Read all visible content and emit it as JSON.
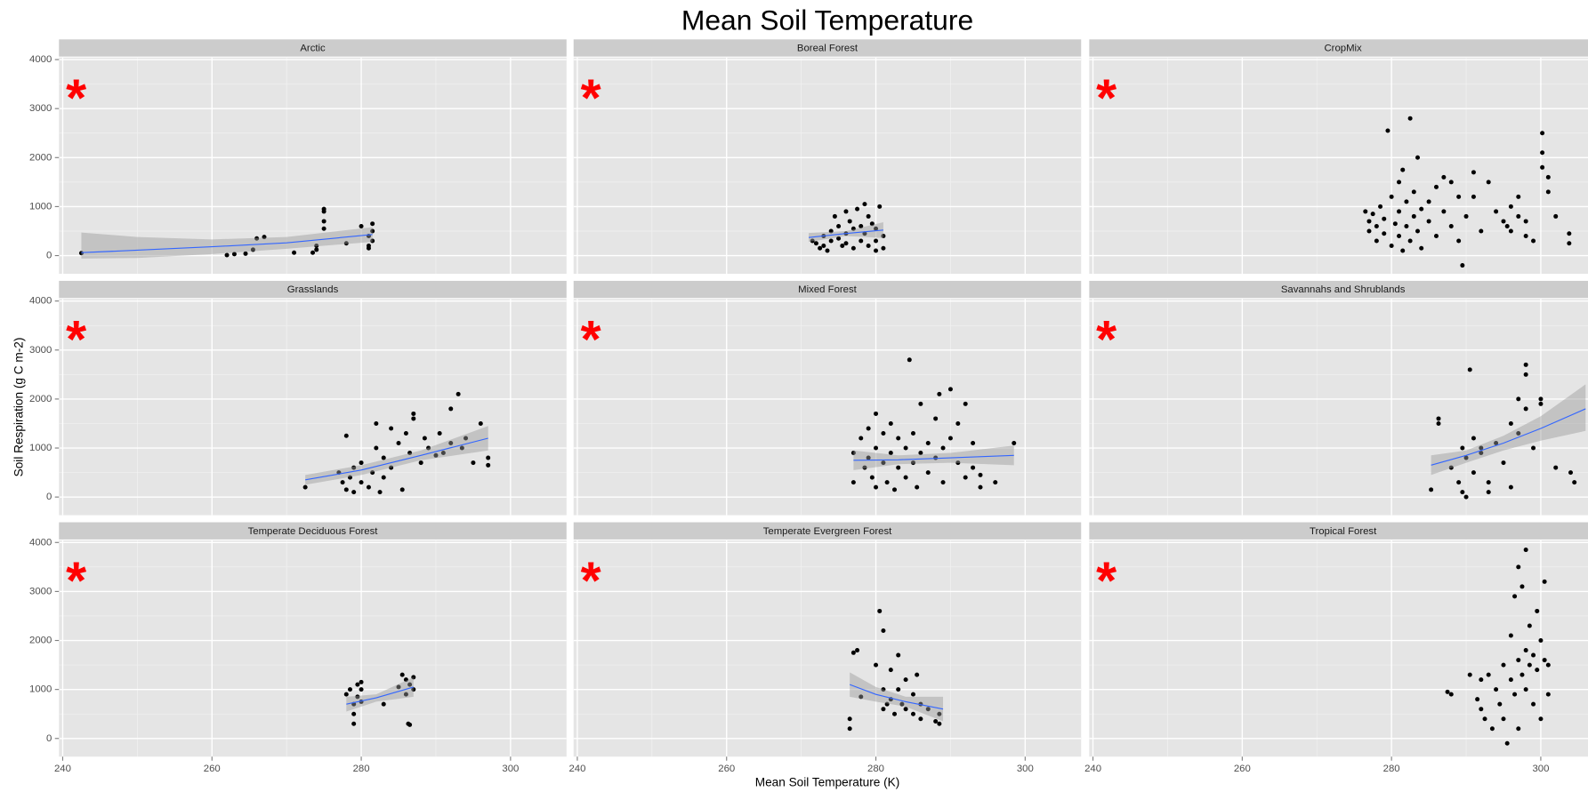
{
  "title": "Mean Soil Temperature",
  "x_label": "Mean Soil Temperature (K)",
  "y_label": "Soil Respiration (g C m-2)",
  "chart_data": [
    {
      "type": "scatter",
      "title": "Arctic",
      "annotation": "*",
      "color": "#000000",
      "trend_color": "#3366ff",
      "grid": true,
      "xlim": [
        239.5,
        307.5
      ],
      "ylim": [
        -371,
        4041
      ],
      "xticks": [
        240,
        260,
        280,
        300
      ],
      "yticks": [
        0,
        1000,
        2000,
        3000,
        4000
      ],
      "x": [
        242.5,
        262,
        263,
        264.5,
        265.5,
        266,
        267,
        271,
        273.5,
        274,
        274,
        275,
        275,
        275,
        275,
        278,
        280,
        281,
        281,
        281,
        281.5,
        281.5,
        281.5
      ],
      "values": [
        50,
        10,
        30,
        40,
        120,
        350,
        380,
        60,
        60,
        120,
        200,
        550,
        700,
        900,
        950,
        250,
        600,
        400,
        200,
        150,
        650,
        500,
        300
      ],
      "trend": {
        "x": [
          242.5,
          250,
          260,
          270,
          281.5
        ],
        "values": [
          60,
          110,
          180,
          260,
          430
        ],
        "upper": [
          470,
          380,
          330,
          380,
          580
        ],
        "lower": [
          -60,
          -50,
          30,
          140,
          280
        ]
      }
    },
    {
      "type": "scatter",
      "title": "Boreal Forest",
      "annotation": "*",
      "color": "#000000",
      "trend_color": "#3366ff",
      "grid": true,
      "xlim": [
        239.5,
        307.5
      ],
      "ylim": [
        -371,
        4041
      ],
      "xticks": [
        240,
        260,
        280,
        300
      ],
      "yticks": [
        0,
        1000,
        2000,
        3000,
        4000
      ],
      "x": [
        271.5,
        272,
        272.5,
        273,
        273,
        273.5,
        274,
        274,
        274.5,
        275,
        275,
        275.5,
        276,
        276,
        276.5,
        277,
        277,
        277.5,
        278,
        278,
        278.5,
        278.5,
        279,
        279,
        279.5,
        280,
        280,
        280.5,
        281,
        281,
        280,
        276
      ],
      "values": [
        300,
        250,
        150,
        400,
        200,
        100,
        500,
        300,
        800,
        600,
        350,
        200,
        900,
        450,
        700,
        550,
        150,
        950,
        600,
        300,
        1050,
        450,
        800,
        200,
        650,
        550,
        300,
        1000,
        400,
        150,
        100,
        250
      ],
      "trend": {
        "x": [
          271,
          276,
          281
        ],
        "values": [
          370,
          450,
          520
        ],
        "upper": [
          460,
          500,
          680
        ],
        "lower": [
          280,
          400,
          360
        ]
      }
    },
    {
      "type": "scatter",
      "title": "CropMix",
      "annotation": "*",
      "color": "#000000",
      "grid": true,
      "xlim": [
        239.5,
        307.5
      ],
      "ylim": [
        -371,
        4041
      ],
      "xticks": [
        240,
        260,
        280,
        300
      ],
      "yticks": [
        0,
        1000,
        2000,
        3000,
        4000
      ],
      "x": [
        276.5,
        277,
        277,
        277.5,
        278,
        278,
        278.5,
        279,
        279,
        279.5,
        280,
        280,
        280.5,
        281,
        281,
        281,
        281.5,
        281.5,
        282,
        282,
        282.5,
        282.5,
        283,
        283,
        283.5,
        283.5,
        284,
        284,
        285,
        285,
        286,
        286,
        287,
        287,
        288,
        288,
        289,
        289,
        289.5,
        290,
        291,
        291,
        292,
        293,
        294,
        295,
        295.5,
        296,
        296,
        297,
        297,
        298,
        298,
        299,
        300.2,
        300.2,
        300.2,
        301,
        301,
        302,
        303.8,
        303.8
      ],
      "values": [
        900,
        700,
        500,
        850,
        600,
        300,
        1000,
        450,
        750,
        2550,
        1200,
        200,
        650,
        1500,
        900,
        400,
        1750,
        100,
        1100,
        600,
        2800,
        300,
        1300,
        800,
        2000,
        500,
        950,
        150,
        1100,
        700,
        1400,
        400,
        1600,
        900,
        1500,
        600,
        1200,
        300,
        -200,
        800,
        1700,
        1200,
        500,
        1500,
        900,
        700,
        600,
        1000,
        500,
        1200,
        800,
        700,
        400,
        300,
        2500,
        2100,
        1800,
        1600,
        1300,
        800,
        450,
        250
      ]
    },
    {
      "type": "scatter",
      "title": "Grasslands",
      "annotation": "*",
      "color": "#000000",
      "trend_color": "#3366ff",
      "grid": true,
      "xlim": [
        239.5,
        307.5
      ],
      "ylim": [
        -371,
        4041
      ],
      "xticks": [
        240,
        260,
        280,
        300
      ],
      "yticks": [
        0,
        1000,
        2000,
        3000,
        4000
      ],
      "x": [
        272.5,
        277,
        277.5,
        278,
        278,
        278.5,
        279,
        279,
        280,
        280,
        281,
        281.5,
        282,
        282,
        282.5,
        283,
        283,
        284,
        284,
        285,
        285.5,
        286,
        286.5,
        287,
        287,
        288,
        288.5,
        289,
        290,
        290.5,
        291,
        292,
        292,
        293,
        293.5,
        294,
        295,
        296,
        297,
        297
      ],
      "values": [
        200,
        500,
        300,
        150,
        1250,
        400,
        100,
        600,
        700,
        300,
        200,
        500,
        1000,
        1500,
        100,
        800,
        400,
        1400,
        600,
        1100,
        150,
        1300,
        900,
        1600,
        1700,
        700,
        1200,
        1000,
        850,
        1300,
        900,
        1800,
        1100,
        2100,
        1000,
        1200,
        700,
        1500,
        800,
        650
      ],
      "trend": {
        "x": [
          272.5,
          280,
          288,
          297
        ],
        "values": [
          350,
          550,
          850,
          1200
        ],
        "upper": [
          450,
          650,
          950,
          1450
        ],
        "lower": [
          250,
          450,
          750,
          950
        ]
      }
    },
    {
      "type": "scatter",
      "title": "Mixed Forest",
      "annotation": "*",
      "color": "#000000",
      "trend_color": "#3366ff",
      "grid": true,
      "xlim": [
        239.5,
        307.5
      ],
      "ylim": [
        -371,
        4041
      ],
      "xticks": [
        240,
        260,
        280,
        300
      ],
      "yticks": [
        0,
        1000,
        2000,
        3000,
        4000
      ],
      "x": [
        277,
        277,
        278,
        278.5,
        279,
        279,
        279.5,
        280,
        280,
        280,
        281,
        281,
        281.5,
        282,
        282,
        282.5,
        283,
        283,
        284,
        284,
        284.5,
        285,
        285,
        285.5,
        286,
        286,
        287,
        287,
        288,
        288,
        288.5,
        289,
        289,
        290,
        290,
        291,
        291,
        292,
        292,
        293,
        293,
        294,
        294,
        296,
        298.5
      ],
      "values": [
        300,
        900,
        1200,
        600,
        1400,
        800,
        400,
        1700,
        1000,
        200,
        1300,
        700,
        300,
        1500,
        900,
        150,
        1200,
        600,
        1000,
        400,
        2800,
        1300,
        700,
        200,
        1900,
        900,
        1100,
        500,
        1600,
        800,
        2100,
        1000,
        300,
        2200,
        1200,
        700,
        1500,
        1900,
        400,
        1100,
        600,
        200,
        450,
        300,
        1100
      ],
      "trend": {
        "x": [
          277,
          283,
          290,
          298.5
        ],
        "values": [
          750,
          760,
          800,
          850
        ],
        "upper": [
          950,
          850,
          900,
          1050
        ],
        "lower": [
          550,
          670,
          700,
          650
        ]
      }
    },
    {
      "type": "scatter",
      "title": "Savannahs and Shrublands",
      "annotation": "*",
      "color": "#000000",
      "trend_color": "#3366ff",
      "grid": true,
      "xlim": [
        239.5,
        307.5
      ],
      "ylim": [
        -371,
        4041
      ],
      "xticks": [
        240,
        260,
        280,
        300
      ],
      "yticks": [
        0,
        1000,
        2000,
        3000,
        4000
      ],
      "x": [
        285.3,
        286.3,
        286.3,
        288,
        289,
        289.5,
        289.5,
        290,
        290,
        290.5,
        291,
        291,
        292,
        292,
        293,
        293,
        294,
        295,
        296,
        296,
        297,
        297,
        298,
        298,
        298,
        299,
        300,
        300,
        302,
        304,
        304.5
      ],
      "values": [
        150,
        1600,
        1500,
        600,
        300,
        1000,
        100,
        800,
        0,
        2600,
        1200,
        500,
        900,
        1000,
        300,
        100,
        1100,
        700,
        1500,
        200,
        1300,
        2000,
        2700,
        2500,
        1800,
        1000,
        1900,
        2000,
        600,
        500,
        300
      ],
      "trend": {
        "x": [
          285.3,
          290,
          295,
          300,
          306
        ],
        "values": [
          650,
          850,
          1100,
          1400,
          1800
        ],
        "upper": [
          850,
          950,
          1250,
          1650,
          2300
        ],
        "lower": [
          450,
          700,
          950,
          1150,
          1350
        ]
      }
    },
    {
      "type": "scatter",
      "title": "Temperate Deciduous Forest",
      "annotation": "*",
      "color": "#000000",
      "trend_color": "#3366ff",
      "grid": true,
      "xlim": [
        239.5,
        307.5
      ],
      "ylim": [
        -371,
        4041
      ],
      "xticks": [
        240,
        260,
        280,
        300
      ],
      "yticks": [
        0,
        1000,
        2000,
        3000,
        4000
      ],
      "x": [
        278,
        278.5,
        279,
        279,
        279,
        279.5,
        279.5,
        280,
        280,
        280,
        283,
        285,
        285.5,
        286,
        286,
        286.3,
        286.5,
        286.5,
        287,
        287
      ],
      "values": [
        900,
        1000,
        700,
        500,
        300,
        1100,
        850,
        1000,
        1150,
        750,
        700,
        1050,
        1300,
        900,
        1200,
        300,
        1100,
        280,
        1000,
        1250
      ],
      "trend": {
        "x": [
          278,
          282,
          287
        ],
        "values": [
          700,
          830,
          1050
        ],
        "upper": [
          850,
          900,
          1250
        ],
        "lower": [
          550,
          750,
          850
        ]
      }
    },
    {
      "type": "scatter",
      "title": "Temperate Evergreen Forest",
      "annotation": "*",
      "color": "#000000",
      "trend_color": "#3366ff",
      "grid": true,
      "xlim": [
        239.5,
        307.5
      ],
      "ylim": [
        -371,
        4041
      ],
      "xticks": [
        240,
        260,
        280,
        300
      ],
      "yticks": [
        0,
        1000,
        2000,
        3000,
        4000
      ],
      "x": [
        276.5,
        276.5,
        277,
        277.5,
        278,
        280,
        280.5,
        281,
        281,
        281,
        281.5,
        282,
        282,
        282.5,
        283,
        283,
        283.5,
        284,
        284,
        285,
        285,
        285.5,
        286,
        286,
        287,
        288,
        288.5,
        288.5
      ],
      "values": [
        200,
        400,
        1750,
        1800,
        850,
        1500,
        2600,
        2200,
        1000,
        600,
        700,
        1400,
        800,
        500,
        1700,
        1000,
        700,
        1200,
        600,
        900,
        500,
        1300,
        700,
        400,
        600,
        350,
        500,
        300
      ],
      "trend": {
        "x": [
          276.5,
          280,
          284,
          289
        ],
        "values": [
          1100,
          900,
          750,
          600
        ],
        "upper": [
          1350,
          1050,
          850,
          850
        ],
        "lower": [
          850,
          750,
          650,
          350
        ]
      }
    },
    {
      "type": "scatter",
      "title": "Tropical Forest",
      "annotation": "*",
      "color": "#000000",
      "grid": true,
      "xlim": [
        239.5,
        307.5
      ],
      "ylim": [
        -371,
        4041
      ],
      "xticks": [
        240,
        260,
        280,
        300
      ],
      "yticks": [
        0,
        1000,
        2000,
        3000,
        4000
      ],
      "x": [
        287.5,
        288,
        290.5,
        291.5,
        292,
        292,
        292.5,
        293,
        293.5,
        294,
        294.5,
        295,
        295,
        295.5,
        296,
        296,
        296.5,
        296.5,
        297,
        297,
        297,
        297.5,
        297.5,
        298,
        298,
        298,
        298.5,
        298.5,
        299,
        299,
        299.5,
        299.5,
        300,
        300,
        300.5,
        300.5,
        301,
        301
      ],
      "values": [
        950,
        900,
        1300,
        800,
        1200,
        600,
        400,
        1300,
        200,
        1000,
        700,
        1500,
        400,
        -100,
        1200,
        2100,
        900,
        2900,
        1600,
        3500,
        200,
        1300,
        3100,
        1800,
        1000,
        3850,
        1500,
        2300,
        1700,
        700,
        2600,
        1400,
        2000,
        400,
        1600,
        3200,
        900,
        1500
      ]
    }
  ]
}
